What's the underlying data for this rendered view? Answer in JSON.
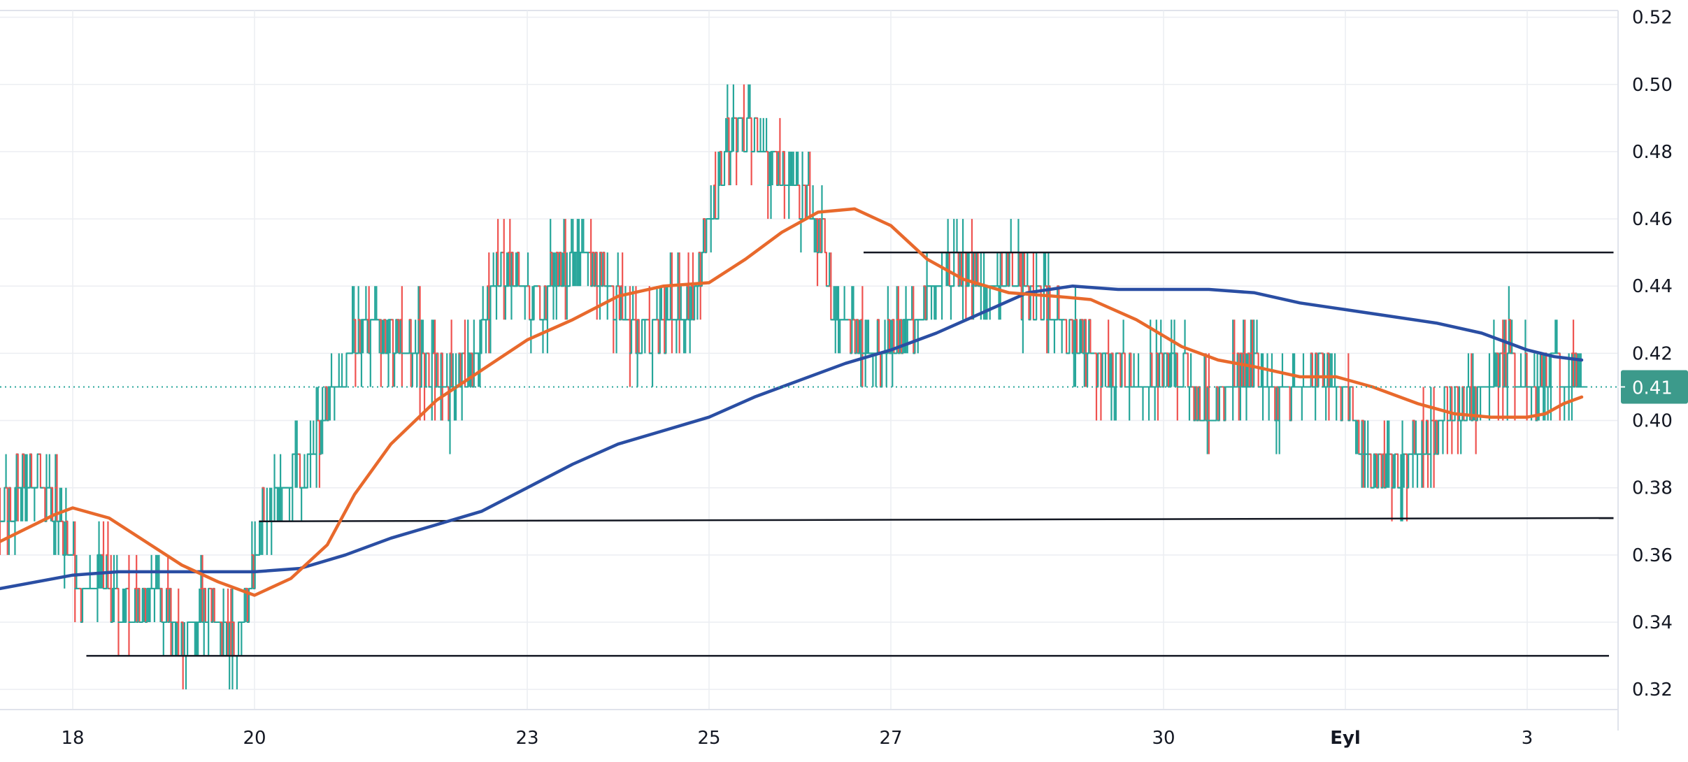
{
  "chart_data": {
    "type": "ohlc_bar",
    "x_ticks": [
      "18",
      "20",
      "23",
      "25",
      "27",
      "30",
      "Eyl",
      "3"
    ],
    "x_tick_positions_days": [
      0,
      2,
      5,
      7,
      9,
      12,
      14,
      16
    ],
    "bold_ticks": [
      "Eyl"
    ],
    "xlim_days": [
      -0.8,
      17.0
    ],
    "y_ticks": [
      "0.32",
      "0.34",
      "0.36",
      "0.38",
      "0.40",
      "0.42",
      "0.44",
      "0.46",
      "0.48",
      "0.50",
      "0.52"
    ],
    "ylim": [
      0.314,
      0.522
    ],
    "last_price": "0.41",
    "last_price_value": 0.41,
    "grid": true,
    "colors": {
      "up": "#26a69a",
      "down": "#ef5350",
      "ma_fast": "#e8692c",
      "ma_slow": "#2a4ea3",
      "price_line": "#26a69a",
      "price_badge": "#3c9a8b",
      "levels": "#131722"
    },
    "horizontal_levels": [
      {
        "y_start": 0.33,
        "y_end": 0.33,
        "x_start": 0.15,
        "x_end": 16.9
      },
      {
        "y_start": 0.37,
        "y_end": 0.371,
        "x_start": 2.05,
        "x_end": 16.95
      },
      {
        "y_start": 0.45,
        "y_end": 0.45,
        "x_start": 8.7,
        "x_end": 16.95
      }
    ],
    "close_path": [
      [
        -0.8,
        0.375
      ],
      [
        -0.4,
        0.385
      ],
      [
        0.0,
        0.36
      ],
      [
        0.1,
        0.345
      ],
      [
        0.3,
        0.355
      ],
      [
        0.6,
        0.34
      ],
      [
        0.9,
        0.35
      ],
      [
        1.2,
        0.335
      ],
      [
        1.5,
        0.345
      ],
      [
        1.8,
        0.335
      ],
      [
        2.0,
        0.355
      ],
      [
        2.1,
        0.375
      ],
      [
        2.4,
        0.38
      ],
      [
        2.6,
        0.39
      ],
      [
        2.9,
        0.41
      ],
      [
        3.2,
        0.43
      ],
      [
        3.5,
        0.425
      ],
      [
        3.8,
        0.42
      ],
      [
        4.1,
        0.41
      ],
      [
        4.4,
        0.415
      ],
      [
        4.6,
        0.44
      ],
      [
        4.8,
        0.445
      ],
      [
        5.1,
        0.435
      ],
      [
        5.3,
        0.445
      ],
      [
        5.6,
        0.45
      ],
      [
        5.9,
        0.44
      ],
      [
        6.2,
        0.425
      ],
      [
        6.5,
        0.43
      ],
      [
        6.8,
        0.435
      ],
      [
        7.1,
        0.47
      ],
      [
        7.3,
        0.49
      ],
      [
        7.6,
        0.48
      ],
      [
        7.9,
        0.47
      ],
      [
        8.2,
        0.46
      ],
      [
        8.4,
        0.43
      ],
      [
        8.6,
        0.425
      ],
      [
        8.9,
        0.42
      ],
      [
        9.2,
        0.425
      ],
      [
        9.4,
        0.435
      ],
      [
        9.7,
        0.45
      ],
      [
        10.0,
        0.44
      ],
      [
        10.3,
        0.445
      ],
      [
        10.6,
        0.435
      ],
      [
        10.9,
        0.43
      ],
      [
        11.2,
        0.42
      ],
      [
        11.5,
        0.415
      ],
      [
        11.8,
        0.41
      ],
      [
        12.1,
        0.42
      ],
      [
        12.4,
        0.405
      ],
      [
        12.7,
        0.41
      ],
      [
        13.0,
        0.42
      ],
      [
        13.2,
        0.405
      ],
      [
        13.5,
        0.41
      ],
      [
        13.8,
        0.415
      ],
      [
        14.1,
        0.4
      ],
      [
        14.3,
        0.385
      ],
      [
        14.6,
        0.385
      ],
      [
        14.9,
        0.395
      ],
      [
        15.2,
        0.405
      ],
      [
        15.5,
        0.41
      ],
      [
        15.8,
        0.42
      ],
      [
        16.1,
        0.41
      ],
      [
        16.3,
        0.415
      ],
      [
        16.6,
        0.41
      ]
    ],
    "ma_fast": [
      [
        -0.8,
        0.364
      ],
      [
        -0.2,
        0.372
      ],
      [
        0.0,
        0.374
      ],
      [
        0.4,
        0.371
      ],
      [
        0.8,
        0.364
      ],
      [
        1.2,
        0.357
      ],
      [
        1.6,
        0.352
      ],
      [
        2.0,
        0.348
      ],
      [
        2.4,
        0.353
      ],
      [
        2.8,
        0.363
      ],
      [
        3.1,
        0.378
      ],
      [
        3.5,
        0.393
      ],
      [
        4.0,
        0.406
      ],
      [
        4.5,
        0.415
      ],
      [
        5.0,
        0.424
      ],
      [
        5.5,
        0.43
      ],
      [
        6.0,
        0.437
      ],
      [
        6.5,
        0.44
      ],
      [
        7.0,
        0.441
      ],
      [
        7.4,
        0.448
      ],
      [
        7.8,
        0.456
      ],
      [
        8.2,
        0.462
      ],
      [
        8.6,
        0.463
      ],
      [
        9.0,
        0.458
      ],
      [
        9.4,
        0.448
      ],
      [
        9.8,
        0.442
      ],
      [
        10.3,
        0.438
      ],
      [
        10.8,
        0.437
      ],
      [
        11.2,
        0.436
      ],
      [
        11.7,
        0.43
      ],
      [
        12.2,
        0.422
      ],
      [
        12.6,
        0.418
      ],
      [
        13.0,
        0.416
      ],
      [
        13.5,
        0.413
      ],
      [
        13.9,
        0.413
      ],
      [
        14.3,
        0.41
      ],
      [
        14.8,
        0.405
      ],
      [
        15.2,
        0.402
      ],
      [
        15.6,
        0.401
      ],
      [
        16.0,
        0.401
      ],
      [
        16.2,
        0.402
      ],
      [
        16.4,
        0.405
      ],
      [
        16.6,
        0.407
      ]
    ],
    "ma_slow": [
      [
        -0.8,
        0.35
      ],
      [
        -0.4,
        0.352
      ],
      [
        0.0,
        0.354
      ],
      [
        0.5,
        0.355
      ],
      [
        1.0,
        0.355
      ],
      [
        1.5,
        0.355
      ],
      [
        2.0,
        0.355
      ],
      [
        2.5,
        0.356
      ],
      [
        3.0,
        0.36
      ],
      [
        3.5,
        0.365
      ],
      [
        4.0,
        0.369
      ],
      [
        4.5,
        0.373
      ],
      [
        5.0,
        0.38
      ],
      [
        5.5,
        0.387
      ],
      [
        6.0,
        0.393
      ],
      [
        6.5,
        0.397
      ],
      [
        7.0,
        0.401
      ],
      [
        7.5,
        0.407
      ],
      [
        8.0,
        0.412
      ],
      [
        8.5,
        0.417
      ],
      [
        9.0,
        0.421
      ],
      [
        9.5,
        0.426
      ],
      [
        10.0,
        0.432
      ],
      [
        10.5,
        0.438
      ],
      [
        11.0,
        0.44
      ],
      [
        11.5,
        0.439
      ],
      [
        12.0,
        0.439
      ],
      [
        12.5,
        0.439
      ],
      [
        13.0,
        0.438
      ],
      [
        13.5,
        0.435
      ],
      [
        14.0,
        0.433
      ],
      [
        14.5,
        0.431
      ],
      [
        15.0,
        0.429
      ],
      [
        15.5,
        0.426
      ],
      [
        16.0,
        0.421
      ],
      [
        16.3,
        0.419
      ],
      [
        16.6,
        0.418
      ]
    ]
  }
}
